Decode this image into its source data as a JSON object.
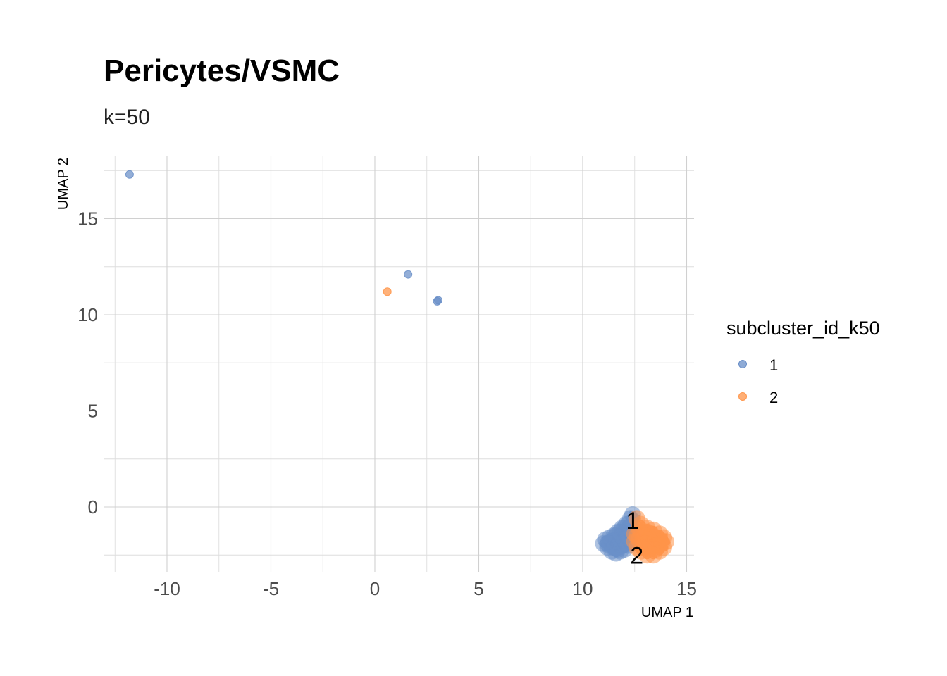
{
  "chart_data": {
    "type": "scatter",
    "title": "Pericytes/VSMC",
    "subtitle": "k=50",
    "xlabel": "UMAP 1",
    "ylabel": "UMAP 2",
    "xlim": [
      -12.5,
      15.0
    ],
    "ylim": [
      -3.2,
      18.0
    ],
    "x_ticks": [
      -10,
      -5,
      0,
      5,
      10,
      15
    ],
    "x_tick_labels": [
      "-10",
      "-5",
      "0",
      "5",
      "10",
      "15"
    ],
    "y_ticks": [
      0,
      5,
      10,
      15
    ],
    "y_tick_labels": [
      "0",
      "5",
      "10",
      "15"
    ],
    "grid": true,
    "legend": {
      "title": "subcluster_id_k50",
      "position": "right",
      "entries": [
        "1",
        "2"
      ]
    },
    "series": [
      {
        "name": "1",
        "color": "#6a8fc8",
        "points": [
          [
            -11.8,
            17.3
          ],
          [
            1.6,
            12.1
          ],
          [
            3.0,
            10.7
          ],
          [
            3.05,
            10.75
          ],
          [
            12.4,
            -0.4
          ],
          [
            12.3,
            -0.6
          ],
          [
            12.1,
            -0.9
          ],
          [
            11.9,
            -1.1
          ],
          [
            11.7,
            -1.3
          ],
          [
            11.5,
            -1.5
          ],
          [
            11.3,
            -1.6
          ],
          [
            11.1,
            -1.7
          ],
          [
            11.0,
            -1.9
          ],
          [
            11.2,
            -2.1
          ],
          [
            11.4,
            -2.3
          ],
          [
            11.6,
            -2.4
          ],
          [
            11.8,
            -2.3
          ],
          [
            12.0,
            -2.2
          ],
          [
            12.2,
            -2.0
          ],
          [
            12.3,
            -1.7
          ],
          [
            12.4,
            -1.4
          ],
          [
            12.3,
            -1.1
          ],
          [
            12.1,
            -1.3
          ],
          [
            11.9,
            -1.5
          ],
          [
            11.7,
            -1.7
          ],
          [
            11.5,
            -1.9
          ],
          [
            11.3,
            -2.0
          ],
          [
            11.6,
            -2.1
          ],
          [
            11.8,
            -1.9
          ],
          [
            12.0,
            -1.7
          ],
          [
            12.2,
            -1.5
          ],
          [
            11.9,
            -2.0
          ],
          [
            11.4,
            -1.8
          ],
          [
            11.6,
            -1.5
          ],
          [
            11.8,
            -1.3
          ],
          [
            12.0,
            -1.1
          ],
          [
            12.2,
            -0.9
          ],
          [
            11.2,
            -1.9
          ],
          [
            11.7,
            -2.2
          ],
          [
            12.1,
            -1.9
          ]
        ]
      },
      {
        "name": "2",
        "color": "#ff9448",
        "points": [
          [
            0.6,
            11.2
          ],
          [
            12.6,
            -0.6
          ],
          [
            12.8,
            -0.9
          ],
          [
            13.1,
            -1.1
          ],
          [
            13.4,
            -1.2
          ],
          [
            13.7,
            -1.4
          ],
          [
            13.9,
            -1.6
          ],
          [
            14.0,
            -1.8
          ],
          [
            13.9,
            -2.1
          ],
          [
            13.7,
            -2.3
          ],
          [
            13.4,
            -2.5
          ],
          [
            13.1,
            -2.5
          ],
          [
            12.8,
            -2.3
          ],
          [
            12.6,
            -2.1
          ],
          [
            12.5,
            -1.8
          ],
          [
            12.6,
            -1.5
          ],
          [
            12.8,
            -1.3
          ],
          [
            13.0,
            -1.5
          ],
          [
            13.2,
            -1.7
          ],
          [
            13.4,
            -1.9
          ],
          [
            13.6,
            -2.0
          ],
          [
            13.5,
            -1.6
          ],
          [
            13.3,
            -1.4
          ],
          [
            13.0,
            -1.9
          ],
          [
            12.9,
            -2.1
          ],
          [
            13.2,
            -2.2
          ],
          [
            13.6,
            -1.8
          ],
          [
            13.8,
            -1.9
          ],
          [
            12.7,
            -1.7
          ],
          [
            13.1,
            -1.3
          ],
          [
            13.5,
            -2.2
          ],
          [
            12.9,
            -1.6
          ],
          [
            13.3,
            -2.0
          ],
          [
            13.7,
            -1.7
          ],
          [
            12.7,
            -1.1
          ],
          [
            12.5,
            -1.4
          ]
        ]
      }
    ],
    "labels": [
      {
        "text": "1",
        "x": 12.4,
        "y": -0.7
      },
      {
        "text": "2",
        "x": 12.6,
        "y": -2.5
      }
    ]
  }
}
